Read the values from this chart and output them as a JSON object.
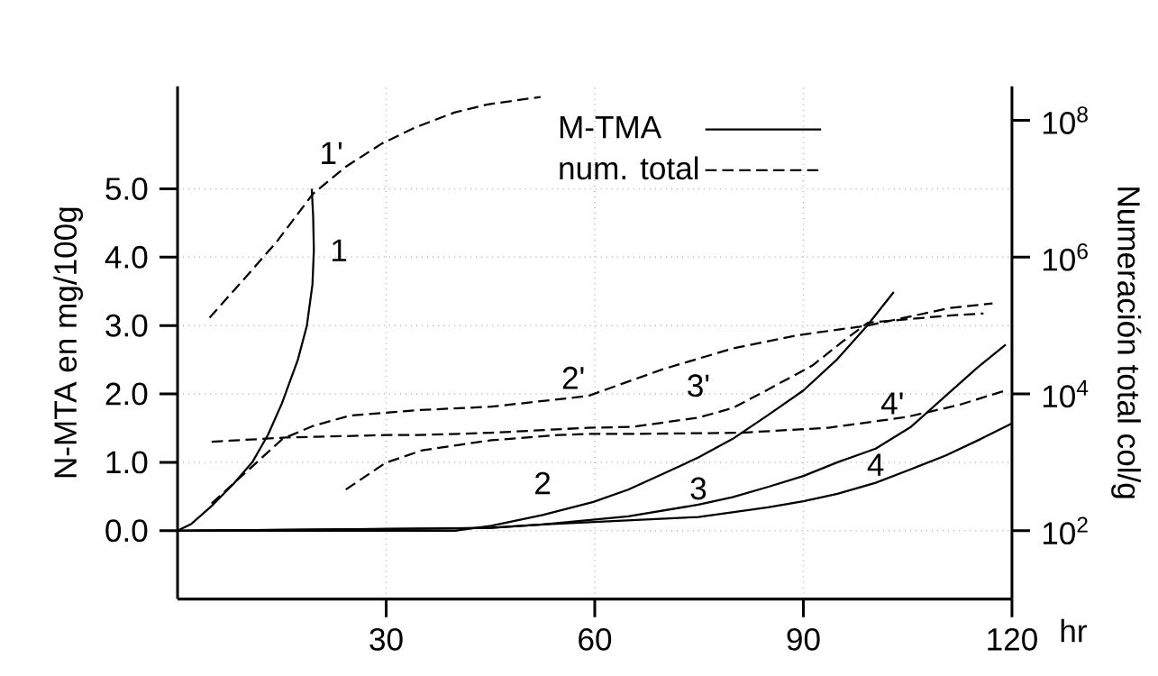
{
  "chart_data": {
    "type": "line",
    "xlabel": "hr",
    "ylabel": "N-MTA en mg/100g",
    "y2label": "Numeración total col/g",
    "xlim": [
      0,
      120
    ],
    "xticks": [
      30,
      60,
      90,
      120
    ],
    "ylim": [
      -1,
      6.5
    ],
    "yticks": [
      {
        "value": 0,
        "label": "0.0"
      },
      {
        "value": 1,
        "label": "1.0"
      },
      {
        "value": 2,
        "label": "2.0"
      },
      {
        "value": 3,
        "label": "3.0"
      },
      {
        "value": 4,
        "label": "4.0"
      },
      {
        "value": 5,
        "label": "5.0"
      }
    ],
    "y2lim": [
      10,
      316000000
    ],
    "y2ticks": [
      {
        "value": 100,
        "label": "10$^{2}$"
      },
      {
        "value": 10000,
        "label": "10$^{4}$"
      },
      {
        "value": 1000000,
        "label": "10$^{6}$"
      },
      {
        "value": 100000000,
        "label": "10$^{8}$"
      }
    ],
    "log": "y2",
    "grid": true,
    "legend": "top",
    "annotations": [
      "M-TMA",
      "num. total"
    ],
    "series": [
      {
        "name": "1",
        "color": "#000000",
        "line_style": "solid",
        "x": [
          0,
          2,
          4.9,
          8,
          10.8,
          13,
          15,
          17.3,
          18.6,
          19.4,
          19.6,
          19.5,
          19.3
        ],
        "values": [
          0,
          0.1,
          0.36,
          0.68,
          1.01,
          1.4,
          1.86,
          2.5,
          3.0,
          3.6,
          4.1,
          4.6,
          5.0
        ]
      },
      {
        "name": "1'",
        "color": "#000000",
        "line_style": "dashed",
        "axis": "y2",
        "x": [
          4.6,
          9.5,
          14.3,
          19.5,
          24.2,
          29.4,
          34.2,
          39.8,
          44.4,
          52.2
        ],
        "values": [
          130000,
          470000,
          1700000,
          8500000,
          21000000,
          46000000,
          79000000,
          130000000,
          170000000,
          220000000
        ]
      },
      {
        "name": "2",
        "color": "#000000",
        "line_style": "solid",
        "x": [
          0,
          40,
          45.1,
          52.5,
          59.8,
          64.8,
          69.8,
          74.9,
          79.8,
          84.9,
          90,
          94.9,
          99.1,
          103
        ],
        "values": [
          0,
          0,
          0.07,
          0.23,
          0.42,
          0.6,
          0.83,
          1.07,
          1.34,
          1.69,
          2.05,
          2.51,
          2.99,
          3.49
        ]
      },
      {
        "name": "2'",
        "color": "#000000",
        "line_style": "dashed",
        "axis": "y2",
        "x": [
          4.9,
          15.1,
          19.5,
          24.7,
          34.6,
          45.1,
          59,
          69.8,
          79.8,
          89.1,
          99.3,
          111,
          117.2
        ],
        "values": [
          250,
          2200,
          3400,
          4800,
          5800,
          6500,
          9300,
          23000,
          46000,
          72000,
          100000,
          180000,
          210000
        ]
      },
      {
        "name": "3",
        "color": "#000000",
        "line_style": "solid",
        "x": [
          0,
          45,
          52.5,
          64.8,
          74.9,
          79.8,
          84.9,
          90,
          94.9,
          100.4,
          105.5,
          110,
          115.1,
          119.1
        ],
        "values": [
          0,
          0.04,
          0.09,
          0.21,
          0.38,
          0.49,
          0.64,
          0.8,
          1.0,
          1.2,
          1.52,
          1.93,
          2.39,
          2.72
        ]
      },
      {
        "name": "3'",
        "color": "#000000",
        "line_style": "dashed",
        "axis": "y2",
        "x": [
          4.9,
          15.6,
          29.9,
          34.6,
          45.1,
          59,
          65.5,
          74.9,
          79.8,
          84.5,
          91.3,
          95.8,
          99.3,
          111,
          115.9
        ],
        "values": [
          2000,
          2300,
          2500,
          2500,
          2700,
          3200,
          3300,
          4500,
          6200,
          11000,
          26000,
          60000,
          110000,
          140000,
          150000
        ]
      },
      {
        "name": "4",
        "color": "#000000",
        "line_style": "solid",
        "x": [
          0,
          45,
          52.5,
          74.9,
          84.9,
          90,
          94.9,
          100.4,
          105.5,
          110.5,
          115.5,
          120
        ],
        "values": [
          0,
          0.04,
          0.09,
          0.2,
          0.34,
          0.43,
          0.54,
          0.7,
          0.9,
          1.1,
          1.34,
          1.57
        ]
      },
      {
        "name": "4'",
        "color": "#000000",
        "line_style": "dashed",
        "axis": "y2",
        "x": [
          24.2,
          29.9,
          35.2,
          45.1,
          54.7,
          59,
          65.5,
          80.9,
          93.6,
          104.9,
          112.4,
          118.8
        ],
        "values": [
          400,
          980,
          1500,
          2100,
          2500,
          2600,
          2600,
          2700,
          3200,
          4600,
          6900,
          11000
        ]
      }
    ]
  }
}
